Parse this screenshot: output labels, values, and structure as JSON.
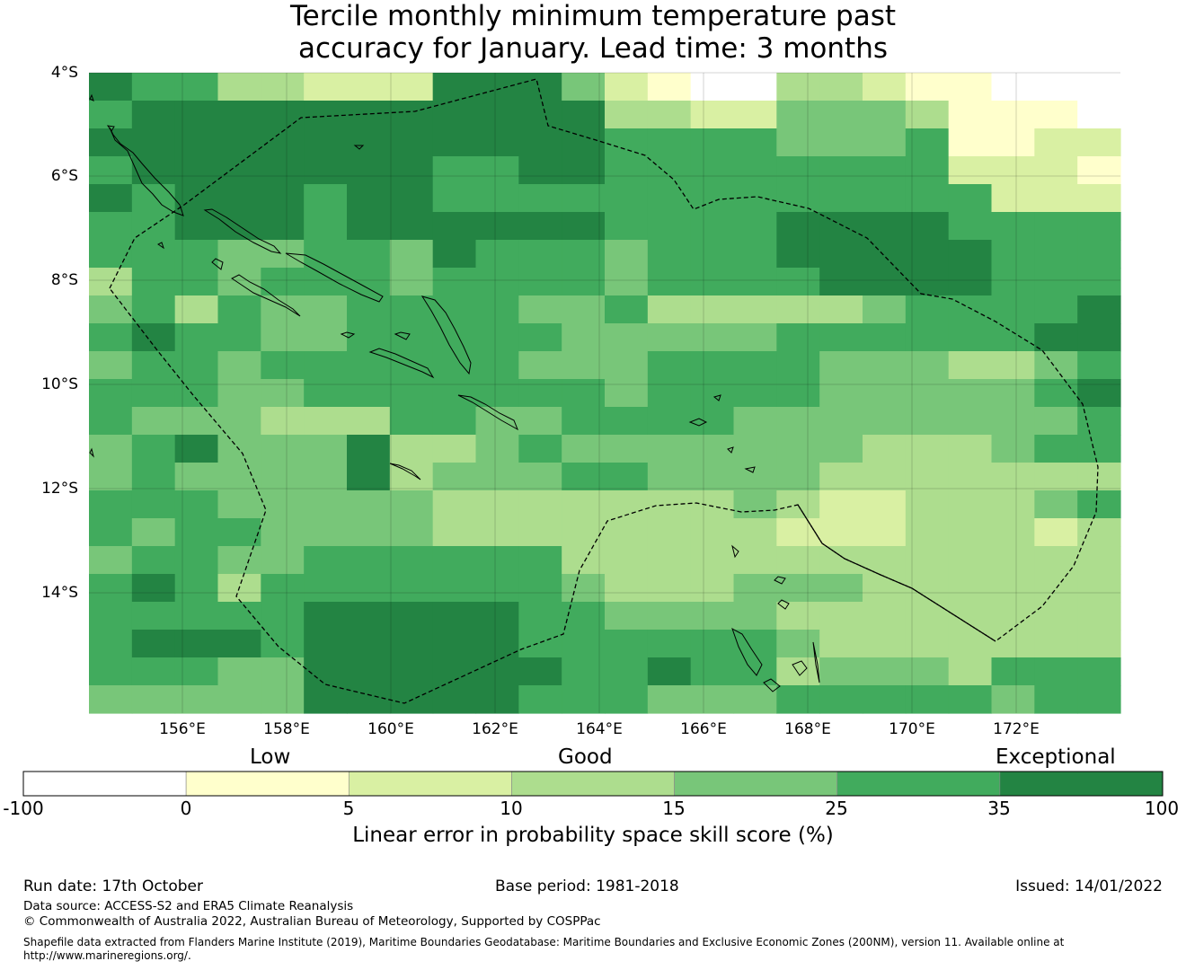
{
  "title_line1": "Tercile monthly minimum temperature past",
  "title_line2": "accuracy for January. Lead time: 3 months",
  "map": {
    "lat_ticks": [
      "4°S",
      "6°S",
      "8°S",
      "10°S",
      "12°S",
      "14°S"
    ],
    "lon_ticks": [
      "156°E",
      "158°E",
      "160°E",
      "162°E",
      "164°E",
      "166°E",
      "168°E",
      "170°E",
      "172°E"
    ],
    "lat_range_deg_south": [
      4,
      16.3
    ],
    "lon_range_deg_east": [
      154.2,
      174.0
    ],
    "grid_columns": [
      "154.2-155.0",
      "155.0-155.8",
      "155.8-156.6",
      "156.6-157.5",
      "157.5-158.3",
      "158.3-159.1",
      "159.1-160.0",
      "160.0-160.8",
      "160.8-161.6",
      "161.6-162.5",
      "162.5-163.3",
      "163.3-164.1",
      "164.1-165.0",
      "165.0-165.8",
      "165.8-166.6",
      "166.6-167.5",
      "167.5-168.3",
      "168.3-169.1",
      "169.1-170.0",
      "170.0-170.8",
      "170.8-171.6",
      "171.6-172.5",
      "172.5-173.3",
      "173.3-174.0"
    ],
    "skill_grid": [
      "655332226664210033211000",
      "566666666666332244431110",
      "666666666666555544451122",
      "566666665566555555552221",
      "656665665555555555555222",
      "556665666666555566665555",
      "555445546555455566666555",
      "355455545555455556666555",
      "453544555544533333455556",
      "565544555554444455555566",
      "455455555544455554443345",
      "555445555555455554444456",
      "544433355445555444444445",
      "456444633454444444333455",
      "454444634445544443333333",
      "555444443333333432233345",
      "545544443333333322233323",
      "455445555553333333333333",
      "565355555554333444333333",
      "555556666655444433333333",
      "566656666655555543333333",
      "555446666665565534443555",
      "444446666655544455555455"
    ]
  },
  "colorbar": {
    "category_low": "Low",
    "category_good": "Good",
    "category_exceptional": "Exceptional",
    "ticks": [
      "-100",
      "0",
      "5",
      "10",
      "15",
      "25",
      "35",
      "100"
    ],
    "colors": [
      "#ffffff",
      "#ffffcc",
      "#d9f0a3",
      "#addd8e",
      "#78c679",
      "#41ab5d",
      "#238443"
    ],
    "label": "Linear error in probability space skill score (%)"
  },
  "footer": {
    "run_date": "Run date: 17th October",
    "base_period": "Base period: 1981-2018",
    "issued": "Issued: 14/01/2022",
    "data_source": "Data source: ACCESS-S2 and ERA5 Climate Reanalysis",
    "copyright": "© Commonwealth of Australia 2022, Australian Bureau of Meteorology, Supported by COSPPac",
    "shapefile_line1": "Shapefile data extracted from Flanders Marine Institute (2019), Maritime Boundaries Geodatabase: Maritime Boundaries and Exclusive Economic Zones (200NM), version 11. Available online at",
    "shapefile_line2": "http://www.marineregions.org/."
  }
}
